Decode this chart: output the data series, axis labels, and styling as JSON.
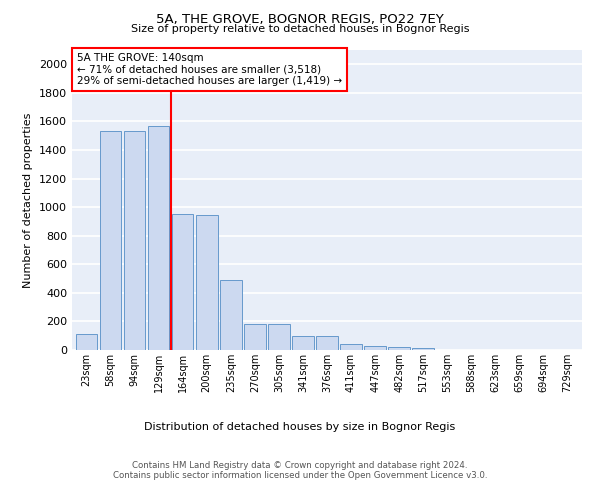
{
  "title_line1": "5A, THE GROVE, BOGNOR REGIS, PO22 7EY",
  "title_line2": "Size of property relative to detached houses in Bognor Regis",
  "xlabel": "Distribution of detached houses by size in Bognor Regis",
  "ylabel": "Number of detached properties",
  "categories": [
    "23sqm",
    "58sqm",
    "94sqm",
    "129sqm",
    "164sqm",
    "200sqm",
    "235sqm",
    "270sqm",
    "305sqm",
    "341sqm",
    "376sqm",
    "411sqm",
    "447sqm",
    "482sqm",
    "517sqm",
    "553sqm",
    "588sqm",
    "623sqm",
    "659sqm",
    "694sqm",
    "729sqm"
  ],
  "values": [
    110,
    1535,
    1530,
    1565,
    950,
    945,
    490,
    185,
    185,
    100,
    100,
    40,
    30,
    20,
    15,
    0,
    0,
    0,
    0,
    0,
    0
  ],
  "bar_color": "#ccd9f0",
  "bar_edge_color": "#6699cc",
  "vline_x": 3.5,
  "vline_color": "red",
  "annotation_text": "5A THE GROVE: 140sqm\n← 71% of detached houses are smaller (3,518)\n29% of semi-detached houses are larger (1,419) →",
  "annotation_box_color": "white",
  "annotation_box_edge": "red",
  "ylim": [
    0,
    2100
  ],
  "yticks": [
    0,
    200,
    400,
    600,
    800,
    1000,
    1200,
    1400,
    1600,
    1800,
    2000
  ],
  "background_color": "#e8eef8",
  "grid_color": "white",
  "footer": "Contains HM Land Registry data © Crown copyright and database right 2024.\nContains public sector information licensed under the Open Government Licence v3.0."
}
